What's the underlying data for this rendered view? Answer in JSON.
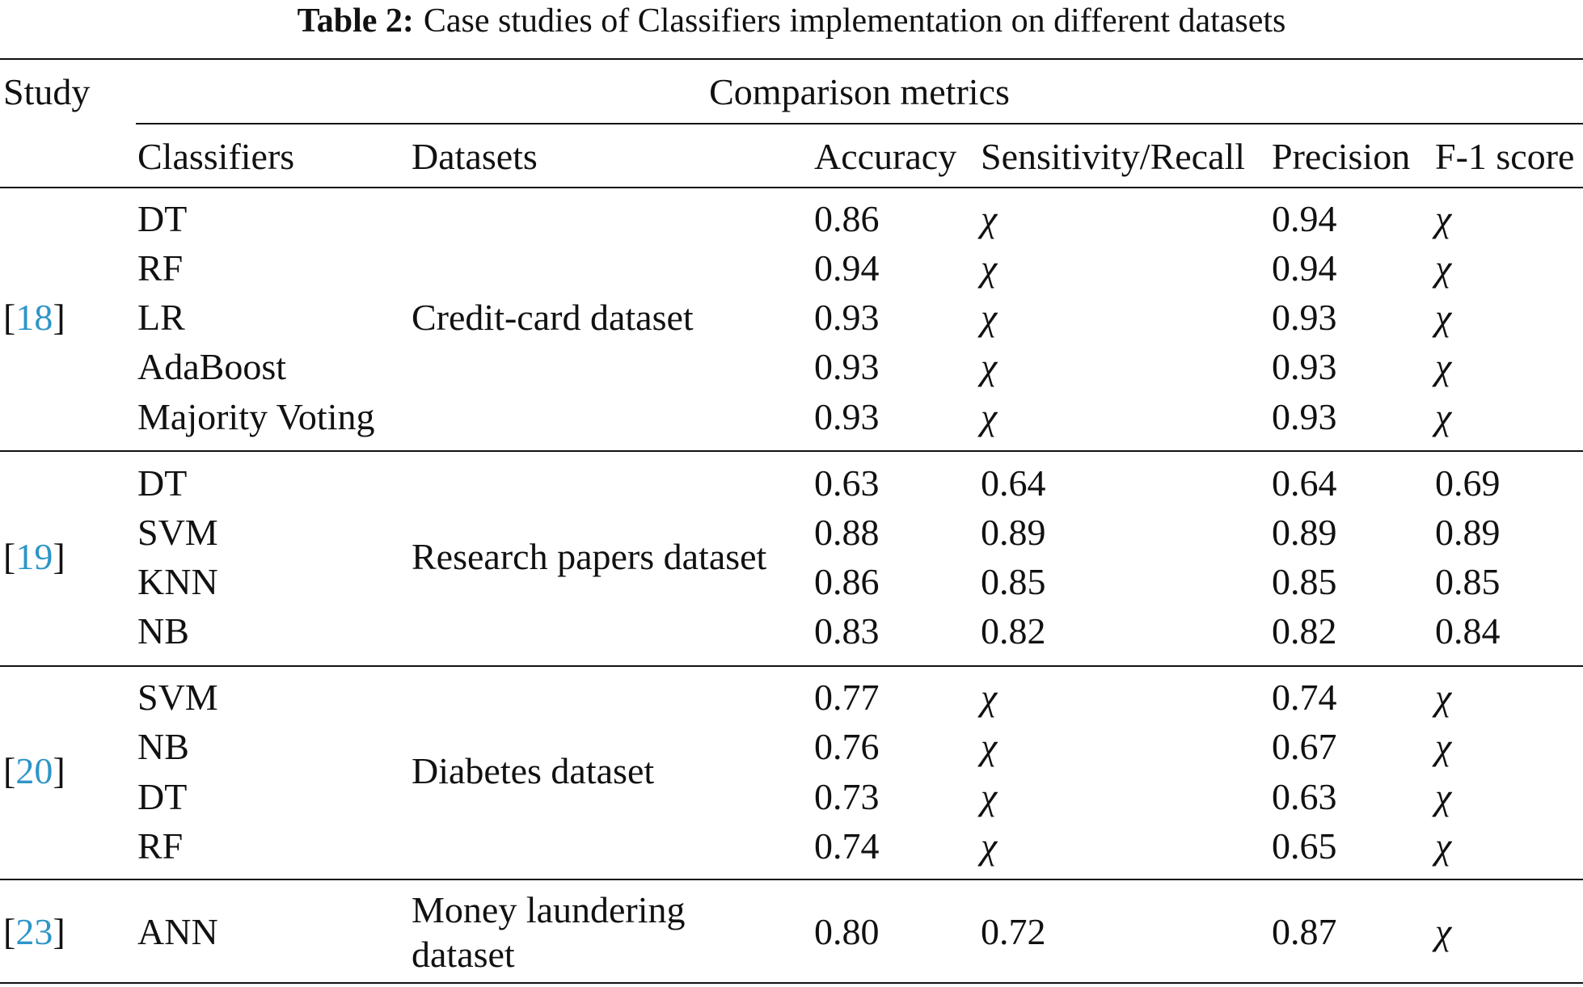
{
  "caption": {
    "label": "Table 2:",
    "text": "Case studies of Classifiers implementation on different datasets"
  },
  "colors": {
    "reference_link": "#2e95c8",
    "text": "#111111"
  },
  "header": {
    "study": "Study",
    "group": "Comparison metrics",
    "classifiers": "Classifiers",
    "datasets": "Datasets",
    "accuracy": "Accuracy",
    "recall": "Sensitivity/Recall",
    "precision": "Precision",
    "f1": "F-1 score"
  },
  "groups": [
    {
      "ref": "18",
      "dataset": [
        "Credit-card dataset"
      ],
      "rows": [
        {
          "classifier": "DT",
          "accuracy": "0.86",
          "recall": "χ",
          "precision": "0.94",
          "f1": "χ"
        },
        {
          "classifier": "RF",
          "accuracy": "0.94",
          "recall": "χ",
          "precision": "0.94",
          "f1": "χ"
        },
        {
          "classifier": "LR",
          "accuracy": "0.93",
          "recall": "χ",
          "precision": "0.93",
          "f1": "χ"
        },
        {
          "classifier": "AdaBoost",
          "accuracy": "0.93",
          "recall": "χ",
          "precision": "0.93",
          "f1": "χ"
        },
        {
          "classifier": "Majority Voting",
          "accuracy": "0.93",
          "recall": "χ",
          "precision": "0.93",
          "f1": "χ"
        }
      ]
    },
    {
      "ref": "19",
      "dataset": [
        "Research papers dataset"
      ],
      "rows": [
        {
          "classifier": "DT",
          "accuracy": "0.63",
          "recall": "0.64",
          "precision": "0.64",
          "f1": "0.69"
        },
        {
          "classifier": "SVM",
          "accuracy": "0.88",
          "recall": "0.89",
          "precision": "0.89",
          "f1": "0.89"
        },
        {
          "classifier": "KNN",
          "accuracy": "0.86",
          "recall": "0.85",
          "precision": "0.85",
          "f1": "0.85"
        },
        {
          "classifier": "NB",
          "accuracy": "0.83",
          "recall": "0.82",
          "precision": "0.82",
          "f1": "0.84"
        }
      ]
    },
    {
      "ref": "20",
      "dataset": [
        "Diabetes dataset"
      ],
      "rows": [
        {
          "classifier": "SVM",
          "accuracy": "0.77",
          "recall": "χ",
          "precision": "0.74",
          "f1": "χ"
        },
        {
          "classifier": "NB",
          "accuracy": "0.76",
          "recall": "χ",
          "precision": "0.67",
          "f1": "χ"
        },
        {
          "classifier": "DT",
          "accuracy": "0.73",
          "recall": "χ",
          "precision": "0.63",
          "f1": "χ"
        },
        {
          "classifier": "RF",
          "accuracy": "0.74",
          "recall": "χ",
          "precision": "0.65",
          "f1": "χ"
        }
      ]
    },
    {
      "ref": "23",
      "dataset": [
        "Money laundering",
        "dataset"
      ],
      "rows": [
        {
          "classifier": "ANN",
          "accuracy": "0.80",
          "recall": "0.72",
          "precision": "0.87",
          "f1": "χ"
        }
      ]
    }
  ]
}
